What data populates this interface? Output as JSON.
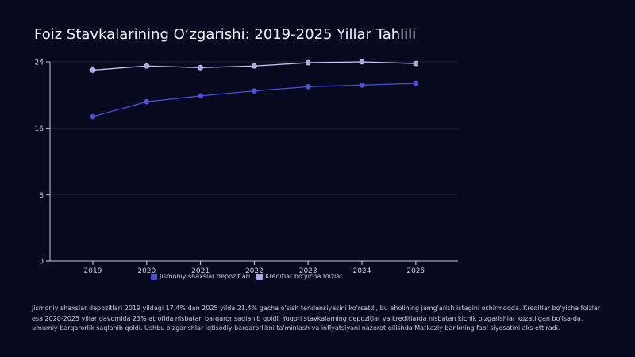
{
  "title": "Foiz Stavkalarining O‘zgarishi: 2019-2025 Yillar Tahlili",
  "caption": "Jismoniy shaxslar depozitlari 2019 yildagi 17.4% dan 2025 yilda 21.4% gacha o'sish tendensiyasini ko'rsatdi, bu aholining jamg'arish istagini oshirmoqda. Kreditlar bo'yicha foizlar esa 2020-2025 yillar davomida 23% atrofida nisbatan barqaror saqlanib qoldi. Yuqori stavkalarning depozitlar va kreditlarda nisbatan kichik o'zgarishlar kuzatilgan bo'lsa-da, umumiy barqarorlik saqlanib qoldi. Ushbu o'zgarishlar iqtisodiy barqarorlikni ta'minlash va inflyatsiyani nazorat qilishda Markaziy bankning faol siyosatini aks ettiradi.",
  "colors": {
    "background": "#070a1f",
    "axis": "#c9cce0",
    "grid": "#1b1f3a"
  },
  "chart_data": {
    "type": "line",
    "x": [
      "2019",
      "2020",
      "2021",
      "2022",
      "2023",
      "2024",
      "2025"
    ],
    "series": [
      {
        "name": "Jismoniy shaxslar depozitlari",
        "values": [
          17.4,
          19.2,
          19.9,
          20.5,
          21.0,
          21.2,
          21.4
        ],
        "color": "#4a50d8",
        "marker_color": "#4a50d8"
      },
      {
        "name": "Kreditlar bo'yicha foizlar",
        "values": [
          23.0,
          23.5,
          23.3,
          23.5,
          23.9,
          24.0,
          23.8
        ],
        "color": "#c8c8f0",
        "marker_color": "#a8a8e0"
      }
    ],
    "yticks": [
      0,
      8,
      16,
      24
    ],
    "ylim": [
      0,
      24
    ],
    "grid": "horizontal",
    "legend": "bottom-center"
  }
}
